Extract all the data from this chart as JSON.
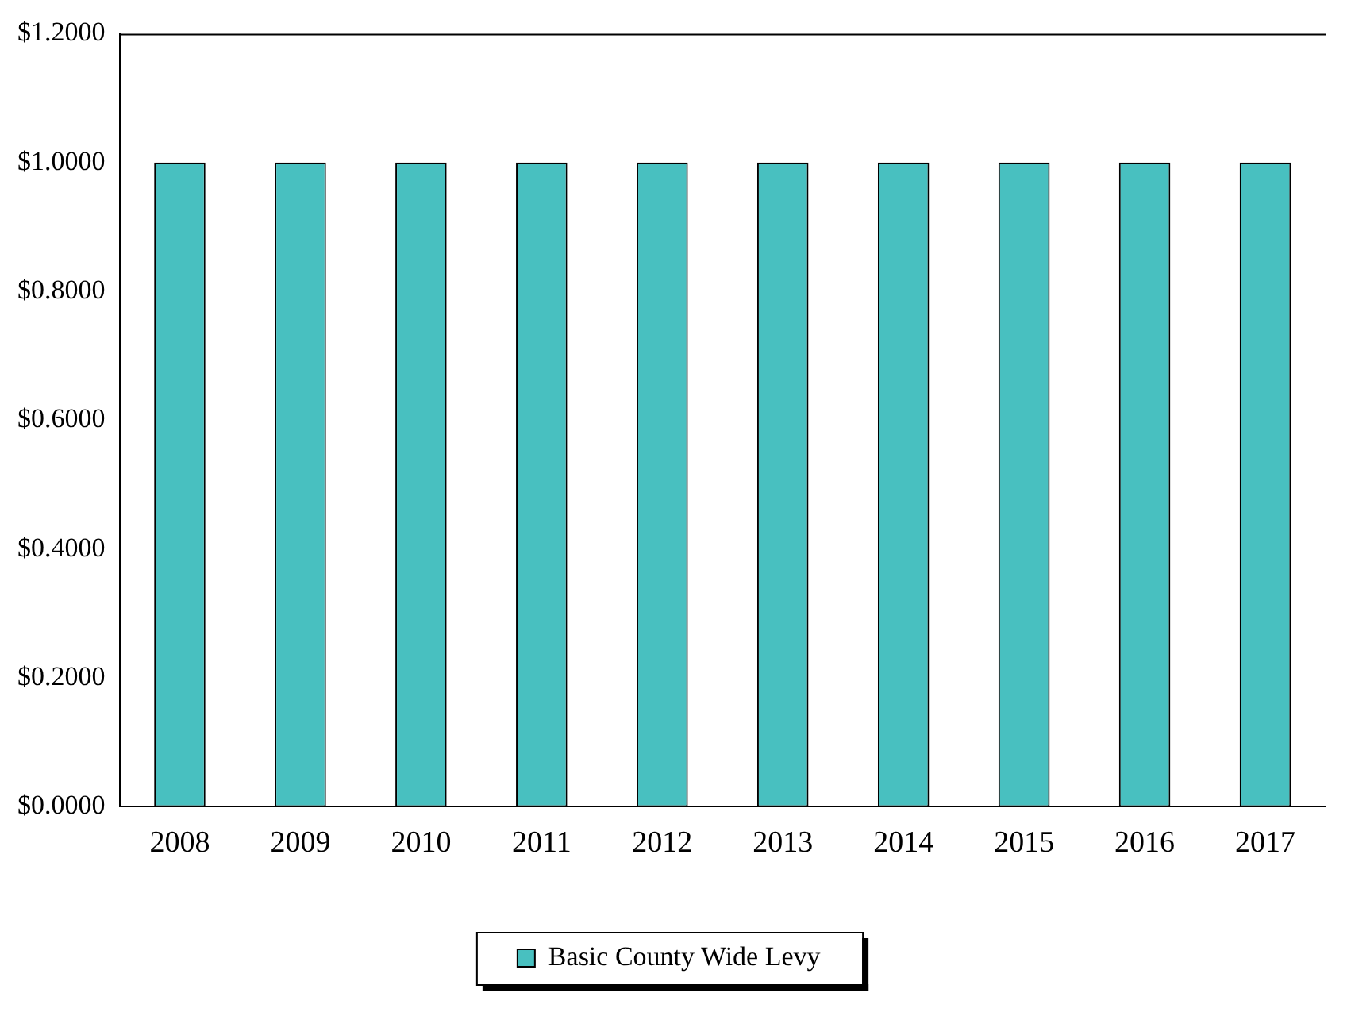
{
  "chart_data": {
    "type": "bar",
    "categories": [
      "2008",
      "2009",
      "2010",
      "2011",
      "2012",
      "2013",
      "2014",
      "2015",
      "2016",
      "2017"
    ],
    "series": [
      {
        "name": "Basic County Wide Levy",
        "color": "#48c0c0",
        "values": [
          1,
          1,
          1,
          1,
          1,
          1,
          1,
          1,
          1,
          1
        ]
      }
    ],
    "ylim": [
      0,
      1.2
    ],
    "yticks": [
      {
        "value": 0,
        "label": "$0.0000"
      },
      {
        "value": 0.2,
        "label": "$0.2000"
      },
      {
        "value": 0.4,
        "label": "$0.4000"
      },
      {
        "value": 0.6,
        "label": "$0.6000"
      },
      {
        "value": 0.8,
        "label": "$0.8000"
      },
      {
        "value": 1,
        "label": "$1.0000"
      },
      {
        "value": 1.2,
        "label": "$1.2000"
      }
    ],
    "grid": false,
    "legend": "bottom"
  }
}
